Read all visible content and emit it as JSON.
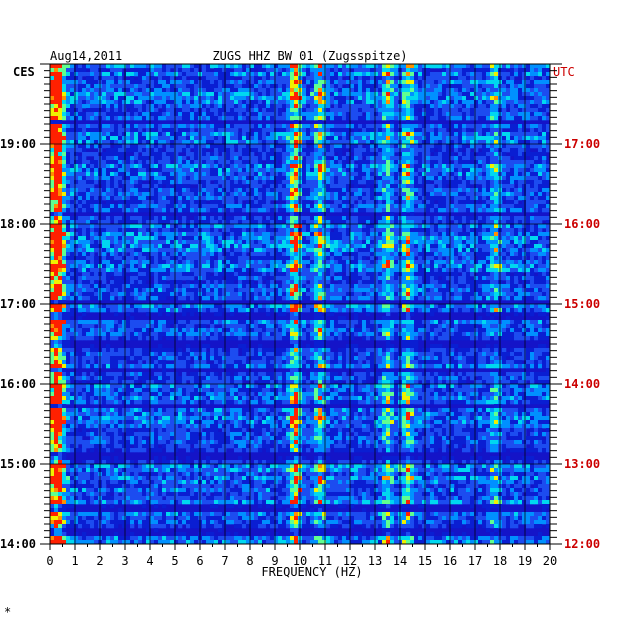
{
  "chart_data": {
    "type": "heatmap",
    "title_date": "Aug14,2011",
    "title_station": "ZUGS HHZ BW 01 (Zugsspitze)",
    "left_timezone": "CES",
    "right_timezone": "UTC",
    "xlabel": "FREQUENCY (HZ)",
    "xlim": [
      0,
      20
    ],
    "x_ticks": [
      "0",
      "1",
      "2",
      "3",
      "4",
      "5",
      "6",
      "7",
      "8",
      "9",
      "10",
      "11",
      "12",
      "13",
      "14",
      "15",
      "16",
      "17",
      "18",
      "19",
      "20"
    ],
    "time_range_hours": [
      14.0,
      20.0
    ],
    "left_time_labels": [
      {
        "t": 19,
        "label": "19:00"
      },
      {
        "t": 18,
        "label": "18:00"
      },
      {
        "t": 17,
        "label": "17:00"
      },
      {
        "t": 16,
        "label": "16:00"
      },
      {
        "t": 15,
        "label": "15:00"
      },
      {
        "t": 14,
        "label": "14:00"
      }
    ],
    "right_time_labels": [
      {
        "t": 19,
        "label": "17:00"
      },
      {
        "t": 18,
        "label": "16:00"
      },
      {
        "t": 17,
        "label": "15:00"
      },
      {
        "t": 16,
        "label": "14:00"
      },
      {
        "t": 15,
        "label": "13:00"
      },
      {
        "t": 14,
        "label": "12:00"
      }
    ],
    "grid": true,
    "colors": {
      "background": "#1414c8",
      "low": "#0000a0",
      "mid": "#00c8ff",
      "high": "#ffff00",
      "peak": "#ff2000",
      "grid": "#000000",
      "right_axis_text": "#cc0000"
    },
    "energy_bands_hz": [
      {
        "f": 0.3,
        "strength": 0.95
      },
      {
        "f": 9.8,
        "strength": 0.7
      },
      {
        "f": 10.8,
        "strength": 0.45
      },
      {
        "f": 13.5,
        "strength": 0.4
      },
      {
        "f": 14.3,
        "strength": 0.45
      },
      {
        "f": 17.8,
        "strength": 0.3
      }
    ],
    "dark_gaps_hours": [
      19.27,
      18.12,
      17.03,
      16.85,
      16.5,
      16.17,
      15.72,
      15.1,
      14.45,
      14.15
    ]
  },
  "footer_mark": "*"
}
